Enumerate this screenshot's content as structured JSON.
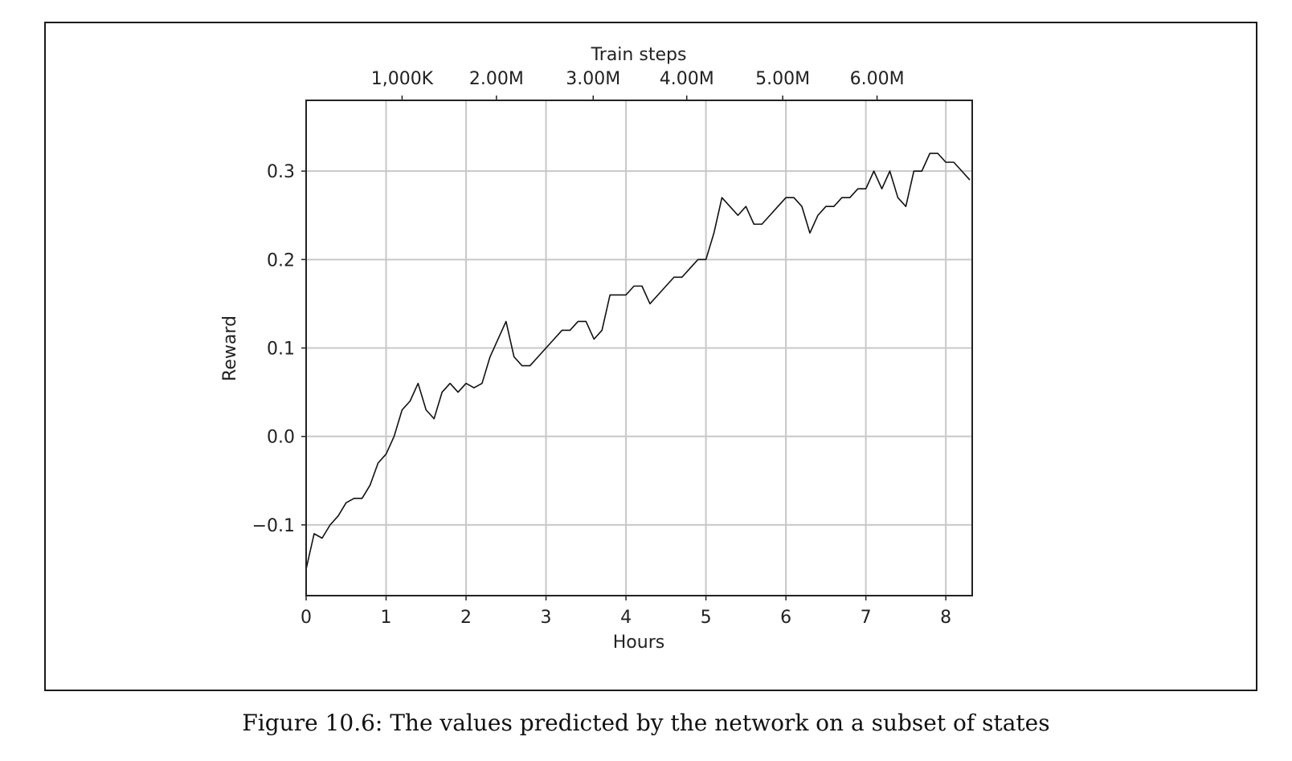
{
  "caption": "Figure 10.6: The values predicted by the network on a subset of states",
  "chart_data": {
    "type": "line",
    "xlabel": "Hours",
    "ylabel": "Reward",
    "top_axis_label": "Train steps",
    "xlim": [
      0,
      8.33
    ],
    "ylim": [
      -0.18,
      0.38
    ],
    "x_ticks": [
      0,
      1,
      2,
      3,
      4,
      5,
      6,
      7,
      8
    ],
    "x_tick_labels": [
      "0",
      "1",
      "2",
      "3",
      "4",
      "5",
      "6",
      "7",
      "8"
    ],
    "y_ticks": [
      -0.1,
      0.0,
      0.1,
      0.2,
      0.3
    ],
    "y_tick_labels": [
      "−0.1",
      "0.0",
      "0.1",
      "0.2",
      "0.3"
    ],
    "top_ticks_hours": [
      1.2,
      2.38,
      3.59,
      4.76,
      5.96,
      7.14
    ],
    "top_tick_labels": [
      "1,000K",
      "2.00M",
      "3.00M",
      "4.00M",
      "5.00M",
      "6.00M"
    ],
    "grid": true,
    "line_color": "#111111",
    "series": [
      {
        "points": [
          [
            0.0,
            -0.15
          ],
          [
            0.1,
            -0.11
          ],
          [
            0.2,
            -0.115
          ],
          [
            0.3,
            -0.1
          ],
          [
            0.4,
            -0.09
          ],
          [
            0.5,
            -0.075
          ],
          [
            0.6,
            -0.07
          ],
          [
            0.7,
            -0.07
          ],
          [
            0.8,
            -0.055
          ],
          [
            0.9,
            -0.03
          ],
          [
            1.0,
            -0.02
          ],
          [
            1.1,
            0.0
          ],
          [
            1.2,
            0.03
          ],
          [
            1.3,
            0.04
          ],
          [
            1.4,
            0.06
          ],
          [
            1.5,
            0.03
          ],
          [
            1.6,
            0.02
          ],
          [
            1.7,
            0.05
          ],
          [
            1.8,
            0.06
          ],
          [
            1.9,
            0.05
          ],
          [
            2.0,
            0.06
          ],
          [
            2.1,
            0.055
          ],
          [
            2.2,
            0.06
          ],
          [
            2.3,
            0.09
          ],
          [
            2.4,
            0.11
          ],
          [
            2.5,
            0.13
          ],
          [
            2.6,
            0.09
          ],
          [
            2.7,
            0.08
          ],
          [
            2.8,
            0.08
          ],
          [
            2.9,
            0.09
          ],
          [
            3.0,
            0.1
          ],
          [
            3.1,
            0.11
          ],
          [
            3.2,
            0.12
          ],
          [
            3.3,
            0.12
          ],
          [
            3.4,
            0.13
          ],
          [
            3.5,
            0.13
          ],
          [
            3.6,
            0.11
          ],
          [
            3.7,
            0.12
          ],
          [
            3.8,
            0.16
          ],
          [
            3.9,
            0.16
          ],
          [
            4.0,
            0.16
          ],
          [
            4.1,
            0.17
          ],
          [
            4.2,
            0.17
          ],
          [
            4.3,
            0.15
          ],
          [
            4.4,
            0.16
          ],
          [
            4.5,
            0.17
          ],
          [
            4.6,
            0.18
          ],
          [
            4.7,
            0.18
          ],
          [
            4.8,
            0.19
          ],
          [
            4.9,
            0.2
          ],
          [
            5.0,
            0.2
          ],
          [
            5.1,
            0.23
          ],
          [
            5.2,
            0.27
          ],
          [
            5.3,
            0.26
          ],
          [
            5.4,
            0.25
          ],
          [
            5.5,
            0.26
          ],
          [
            5.6,
            0.24
          ],
          [
            5.7,
            0.24
          ],
          [
            5.8,
            0.25
          ],
          [
            5.9,
            0.26
          ],
          [
            6.0,
            0.27
          ],
          [
            6.1,
            0.27
          ],
          [
            6.2,
            0.26
          ],
          [
            6.3,
            0.23
          ],
          [
            6.4,
            0.25
          ],
          [
            6.5,
            0.26
          ],
          [
            6.6,
            0.26
          ],
          [
            6.7,
            0.27
          ],
          [
            6.8,
            0.27
          ],
          [
            6.9,
            0.28
          ],
          [
            7.0,
            0.28
          ],
          [
            7.1,
            0.3
          ],
          [
            7.2,
            0.28
          ],
          [
            7.3,
            0.3
          ],
          [
            7.4,
            0.27
          ],
          [
            7.5,
            0.26
          ],
          [
            7.6,
            0.3
          ],
          [
            7.7,
            0.3
          ],
          [
            7.8,
            0.32
          ],
          [
            7.9,
            0.32
          ],
          [
            8.0,
            0.31
          ],
          [
            8.1,
            0.31
          ],
          [
            8.2,
            0.3
          ],
          [
            8.3,
            0.29
          ]
        ]
      }
    ]
  }
}
